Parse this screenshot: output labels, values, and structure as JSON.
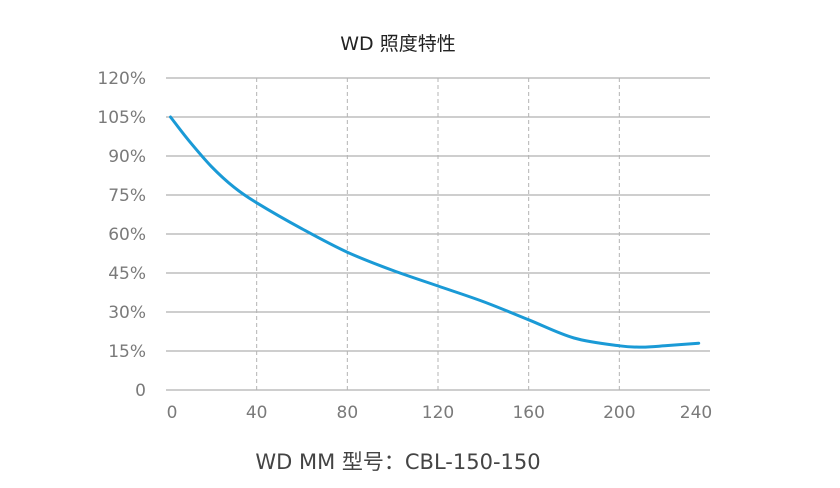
{
  "chart_data": {
    "type": "line",
    "title": "WD 照度特性",
    "xlabel": "WD MM 型号：CBL-150-150",
    "ylabel": "",
    "xlim": [
      0,
      240
    ],
    "ylim": [
      0,
      120
    ],
    "x_ticks": [
      "0",
      "40",
      "80",
      "120",
      "160",
      "200",
      "240"
    ],
    "y_ticks": [
      "0",
      "15%",
      "30%",
      "45%",
      "60%",
      "75%",
      "90%",
      "105%",
      "120%"
    ],
    "grid": {
      "horizontal": "solid",
      "vertical": "dashed"
    },
    "series": [
      {
        "color": "#1a9ad6",
        "x": [
          2,
          10,
          20,
          30,
          40,
          60,
          80,
          100,
          120,
          140,
          160,
          180,
          200,
          210,
          220,
          235
        ],
        "y": [
          105,
          96,
          86,
          78,
          72,
          62,
          53,
          46,
          40,
          34,
          27,
          20,
          17,
          16.5,
          17,
          18
        ]
      }
    ]
  }
}
